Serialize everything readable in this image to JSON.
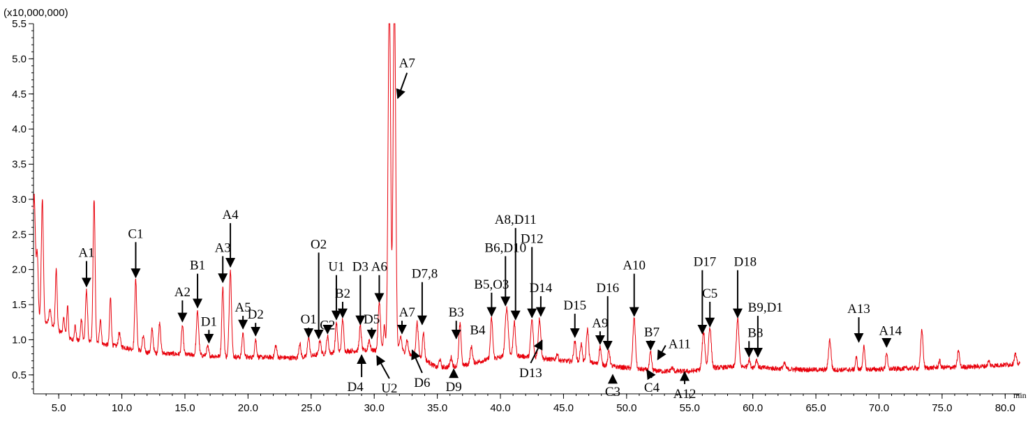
{
  "chart_data": {
    "type": "line",
    "title": "",
    "xlabel": "",
    "ylabel": "",
    "y_multiplier_label": "(x10,000,000)",
    "x_unit_label": "min",
    "xlim": [
      3.0,
      81.2
    ],
    "ylim": [
      0.23,
      5.5
    ],
    "x_ticks": [
      5,
      10,
      15,
      20,
      25,
      30,
      35,
      40,
      45,
      50,
      55,
      60,
      65,
      70,
      75,
      80
    ],
    "x_tick_labels": [
      "5.0",
      "10.0",
      "15.0",
      "20.0",
      "25.0",
      "30.0",
      "35.0",
      "40.0",
      "45.0",
      "50.0",
      "55.0",
      "60.0",
      "65.0",
      "70.0",
      "75.0",
      "80.0"
    ],
    "y_ticks": [
      0.5,
      1.0,
      1.5,
      2.0,
      2.5,
      3.0,
      3.5,
      4.0,
      4.5,
      5.0,
      5.5
    ],
    "y_tick_labels": [
      "0.5",
      "1.0",
      "1.5",
      "2.0",
      "2.5",
      "3.0",
      "3.5",
      "4.0",
      "4.5",
      "5.0",
      "5.5"
    ],
    "grid": false,
    "line_color": "#e8000b",
    "baseline": [
      [
        3.0,
        1.35
      ],
      [
        4.5,
        1.2
      ],
      [
        6.0,
        1.0
      ],
      [
        8.0,
        0.95
      ],
      [
        10.0,
        0.9
      ],
      [
        12.0,
        0.82
      ],
      [
        14.0,
        0.8
      ],
      [
        16.0,
        0.78
      ],
      [
        18.0,
        0.76
      ],
      [
        20.0,
        0.75
      ],
      [
        22.0,
        0.75
      ],
      [
        24.0,
        0.74
      ],
      [
        26.0,
        0.8
      ],
      [
        28.0,
        0.84
      ],
      [
        30.0,
        0.85
      ],
      [
        32.0,
        0.85
      ],
      [
        34.0,
        0.72
      ],
      [
        35.0,
        0.6
      ],
      [
        37.0,
        0.63
      ],
      [
        39.0,
        0.72
      ],
      [
        41.0,
        0.78
      ],
      [
        43.0,
        0.74
      ],
      [
        45.0,
        0.7
      ],
      [
        47.0,
        0.68
      ],
      [
        49.0,
        0.62
      ],
      [
        51.0,
        0.58
      ],
      [
        53.0,
        0.55
      ],
      [
        55.0,
        0.55
      ],
      [
        57.0,
        0.6
      ],
      [
        59.0,
        0.62
      ],
      [
        61.0,
        0.6
      ],
      [
        63.0,
        0.58
      ],
      [
        66.0,
        0.57
      ],
      [
        70.0,
        0.58
      ],
      [
        74.0,
        0.6
      ],
      [
        78.0,
        0.62
      ],
      [
        81.2,
        0.66
      ]
    ],
    "peaks": [
      [
        3.05,
        3.05,
        0.1
      ],
      [
        3.3,
        2.2,
        0.07
      ],
      [
        3.7,
        3.0,
        0.08
      ],
      [
        4.3,
        1.45,
        0.08
      ],
      [
        4.8,
        2.0,
        0.07
      ],
      [
        5.4,
        1.3,
        0.07
      ],
      [
        5.7,
        1.5,
        0.06
      ],
      [
        6.3,
        1.2,
        0.07
      ],
      [
        6.8,
        1.3,
        0.07
      ],
      [
        7.2,
        1.7,
        0.08
      ],
      [
        7.8,
        3.0,
        0.08
      ],
      [
        8.3,
        1.3,
        0.07
      ],
      [
        9.1,
        1.6,
        0.07
      ],
      [
        9.8,
        1.1,
        0.08
      ],
      [
        11.1,
        1.85,
        0.08
      ],
      [
        11.7,
        1.05,
        0.08
      ],
      [
        12.4,
        1.15,
        0.08
      ],
      [
        13.0,
        1.25,
        0.08
      ],
      [
        14.8,
        1.2,
        0.08
      ],
      [
        16.0,
        1.4,
        0.09
      ],
      [
        16.8,
        0.9,
        0.08
      ],
      [
        18.0,
        1.75,
        0.08
      ],
      [
        18.6,
        2.0,
        0.09
      ],
      [
        19.6,
        1.1,
        0.08
      ],
      [
        20.6,
        1.0,
        0.08
      ],
      [
        22.2,
        0.92,
        0.08
      ],
      [
        24.1,
        0.95,
        0.08
      ],
      [
        24.8,
        1.05,
        0.08
      ],
      [
        25.7,
        1.0,
        0.08
      ],
      [
        26.3,
        1.05,
        0.08
      ],
      [
        27.0,
        1.25,
        0.08
      ],
      [
        27.5,
        1.3,
        0.08
      ],
      [
        28.9,
        1.2,
        0.08
      ],
      [
        29.6,
        1.0,
        0.08
      ],
      [
        30.4,
        1.55,
        0.09
      ],
      [
        30.8,
        1.2,
        0.07
      ],
      [
        31.2,
        6.0,
        0.1
      ],
      [
        31.6,
        6.0,
        0.1
      ],
      [
        32.1,
        1.05,
        0.08
      ],
      [
        32.6,
        1.0,
        0.08
      ],
      [
        33.4,
        1.25,
        0.09
      ],
      [
        33.9,
        1.1,
        0.08
      ],
      [
        35.2,
        0.72,
        0.08
      ],
      [
        36.1,
        0.75,
        0.08
      ],
      [
        36.8,
        1.22,
        0.09
      ],
      [
        37.7,
        0.9,
        0.09
      ],
      [
        39.3,
        1.3,
        0.09
      ],
      [
        40.5,
        1.45,
        0.12
      ],
      [
        41.1,
        1.25,
        0.09
      ],
      [
        42.5,
        1.28,
        0.1
      ],
      [
        43.1,
        1.3,
        0.1
      ],
      [
        44.5,
        0.8,
        0.08
      ],
      [
        45.9,
        0.98,
        0.09
      ],
      [
        46.4,
        0.95,
        0.08
      ],
      [
        46.9,
        1.15,
        0.09
      ],
      [
        47.9,
        0.9,
        0.08
      ],
      [
        48.6,
        0.85,
        0.08
      ],
      [
        50.6,
        1.3,
        0.1
      ],
      [
        51.9,
        0.82,
        0.08
      ],
      [
        53.6,
        0.6,
        0.1
      ],
      [
        56.1,
        1.1,
        0.11
      ],
      [
        56.6,
        1.18,
        0.11
      ],
      [
        58.8,
        1.3,
        0.1
      ],
      [
        59.7,
        0.72,
        0.08
      ],
      [
        60.3,
        0.72,
        0.08
      ],
      [
        62.5,
        0.66,
        0.1
      ],
      [
        66.1,
        1.0,
        0.1
      ],
      [
        68.2,
        0.75,
        0.07
      ],
      [
        68.8,
        0.9,
        0.08
      ],
      [
        70.6,
        0.82,
        0.07
      ],
      [
        73.4,
        1.15,
        0.09
      ],
      [
        74.8,
        0.7,
        0.07
      ],
      [
        76.3,
        0.85,
        0.08
      ],
      [
        78.7,
        0.7,
        0.07
      ],
      [
        80.8,
        0.8,
        0.08
      ]
    ],
    "annotations": [
      {
        "label": "A1",
        "x": 7.2,
        "y": 1.72,
        "dir": "down",
        "len": 1,
        "lx": 7.2,
        "ly": 2.18
      },
      {
        "label": "C1",
        "x": 11.1,
        "y": 1.85,
        "dir": "down",
        "len": 2,
        "lx": 11.1,
        "ly": 2.45
      },
      {
        "label": "A2",
        "x": 14.8,
        "y": 1.22,
        "dir": "down",
        "len": 1,
        "lx": 14.8,
        "ly": 1.62
      },
      {
        "label": "B1",
        "x": 16.0,
        "y": 1.42,
        "dir": "down",
        "len": 1,
        "lx": 16.0,
        "ly": 2.0
      },
      {
        "label": "D1",
        "x": 16.9,
        "y": 0.92,
        "dir": "down",
        "len": 0,
        "lx": 16.9,
        "ly": 1.2
      },
      {
        "label": "A3",
        "x": 18.0,
        "y": 1.78,
        "dir": "down",
        "len": 1,
        "lx": 18.0,
        "ly": 2.25
      },
      {
        "label": "A4",
        "x": 18.6,
        "y": 2.0,
        "dir": "down",
        "len": 2,
        "lx": 18.6,
        "ly": 2.72
      },
      {
        "label": "A5",
        "x": 19.6,
        "y": 1.12,
        "dir": "down",
        "len": 0,
        "lx": 19.6,
        "ly": 1.4
      },
      {
        "label": "D2",
        "x": 20.6,
        "y": 1.02,
        "dir": "down",
        "len": 0,
        "lx": 20.6,
        "ly": 1.3
      },
      {
        "label": "O1",
        "x": 24.8,
        "y": 1.0,
        "dir": "down",
        "len": 1,
        "lx": 24.8,
        "ly": 1.23
      },
      {
        "label": "O2",
        "x": 25.6,
        "y": 0.98,
        "dir": "down",
        "len": 4,
        "lx": 25.6,
        "ly": 2.3
      },
      {
        "label": "C2",
        "x": 26.3,
        "y": 1.05,
        "dir": "down",
        "len": 1,
        "lx": 26.3,
        "ly": 1.15
      },
      {
        "label": "U1",
        "x": 27.0,
        "y": 1.25,
        "dir": "down",
        "len": 2,
        "lx": 27.0,
        "ly": 1.98
      },
      {
        "label": "B2",
        "x": 27.5,
        "y": 1.28,
        "dir": "down",
        "len": 1,
        "lx": 27.5,
        "ly": 1.6
      },
      {
        "label": "D3",
        "x": 28.9,
        "y": 1.18,
        "dir": "down",
        "len": 2,
        "lx": 28.9,
        "ly": 1.98
      },
      {
        "label": "D5",
        "x": 29.8,
        "y": 0.98,
        "dir": "down",
        "len": 0,
        "lx": 29.8,
        "ly": 1.23
      },
      {
        "label": "A6",
        "x": 30.4,
        "y": 1.5,
        "dir": "down",
        "len": 1,
        "lx": 30.4,
        "ly": 1.98
      },
      {
        "label": "A7",
        "x": 31.7,
        "y": 4.4,
        "dir": "upleft",
        "len": 0,
        "lx": 32.6,
        "ly": 4.88
      },
      {
        "label": "D7,8",
        "x": 33.8,
        "y": 1.18,
        "dir": "down",
        "len": 2,
        "lx": 34.0,
        "ly": 1.88
      },
      {
        "label": "A7",
        "x": 32.2,
        "y": 1.05,
        "dir": "down",
        "len": 0,
        "lx": 32.6,
        "ly": 1.33
      },
      {
        "label": "B3",
        "x": 36.5,
        "y": 0.98,
        "dir": "down",
        "len": 0,
        "lx": 36.5,
        "ly": 1.33
      },
      {
        "label": "B4",
        "x": 37.7,
        "y": 1.0,
        "dir": "none",
        "len": 0,
        "lx": 38.2,
        "ly": 1.08
      },
      {
        "label": "B5,O3",
        "x": 39.3,
        "y": 1.3,
        "dir": "down",
        "len": 1,
        "lx": 39.3,
        "ly": 1.73
      },
      {
        "label": "B6,D10",
        "x": 40.4,
        "y": 1.45,
        "dir": "down",
        "len": 2,
        "lx": 40.4,
        "ly": 2.25
      },
      {
        "label": "A8,D11",
        "x": 41.2,
        "y": 1.25,
        "dir": "down",
        "len": 4,
        "lx": 41.2,
        "ly": 2.65
      },
      {
        "label": "D12",
        "x": 42.5,
        "y": 1.28,
        "dir": "down",
        "len": 4,
        "lx": 42.5,
        "ly": 2.38
      },
      {
        "label": "D14",
        "x": 43.2,
        "y": 1.3,
        "dir": "down",
        "len": 0,
        "lx": 43.2,
        "ly": 1.68
      },
      {
        "label": "D15",
        "x": 45.9,
        "y": 1.0,
        "dir": "down",
        "len": 0,
        "lx": 45.9,
        "ly": 1.43
      },
      {
        "label": "A9",
        "x": 47.9,
        "y": 0.9,
        "dir": "down",
        "len": 0,
        "lx": 47.9,
        "ly": 1.18
      },
      {
        "label": "D16",
        "x": 48.5,
        "y": 0.82,
        "dir": "down",
        "len": 4,
        "lx": 48.5,
        "ly": 1.68
      },
      {
        "label": "A10",
        "x": 50.6,
        "y": 1.3,
        "dir": "down",
        "len": 2,
        "lx": 50.6,
        "ly": 2.0
      },
      {
        "label": "B7",
        "x": 51.9,
        "y": 0.82,
        "dir": "down",
        "len": 0,
        "lx": 52.0,
        "ly": 1.05
      },
      {
        "label": "A11",
        "x": 52.3,
        "y": 0.7,
        "dir": "upright",
        "len": 0,
        "lx": 54.2,
        "ly": 0.88
      },
      {
        "label": "D17",
        "x": 56.0,
        "y": 1.05,
        "dir": "down",
        "len": 3,
        "lx": 56.2,
        "ly": 2.05
      },
      {
        "label": "C5",
        "x": 56.6,
        "y": 1.15,
        "dir": "down",
        "len": 0,
        "lx": 56.6,
        "ly": 1.6
      },
      {
        "label": "D18",
        "x": 58.8,
        "y": 1.28,
        "dir": "down",
        "len": 3,
        "lx": 59.4,
        "ly": 2.05
      },
      {
        "label": "B9,D1",
        "x": 60.4,
        "y": 0.72,
        "dir": "down",
        "len": 3,
        "lx": 61.0,
        "ly": 1.4
      },
      {
        "label": "B8",
        "x": 59.7,
        "y": 0.72,
        "dir": "down",
        "len": 0,
        "lx": 60.2,
        "ly": 1.04
      },
      {
        "label": "A13",
        "x": 68.4,
        "y": 0.93,
        "dir": "down",
        "len": 0,
        "lx": 68.4,
        "ly": 1.38
      },
      {
        "label": "A14",
        "x": 70.6,
        "y": 0.86,
        "dir": "down",
        "len": 0,
        "lx": 70.9,
        "ly": 1.07
      },
      {
        "label": "D4",
        "x": 29.0,
        "y": 0.82,
        "dir": "up",
        "len": 1,
        "lx": 28.5,
        "ly": 0.27
      },
      {
        "label": "U2",
        "x": 30.1,
        "y": 0.8,
        "dir": "upleft2",
        "len": 0,
        "lx": 31.2,
        "ly": 0.25
      },
      {
        "label": "D6",
        "x": 32.9,
        "y": 0.88,
        "dir": "upleft2",
        "len": 0,
        "lx": 33.8,
        "ly": 0.33
      },
      {
        "label": "D9",
        "x": 36.3,
        "y": 0.62,
        "dir": "up",
        "len": 0,
        "lx": 36.3,
        "ly": 0.27
      },
      {
        "label": "D13",
        "x": 43.3,
        "y": 1.02,
        "dir": "downleft",
        "len": 0,
        "lx": 42.4,
        "ly": 0.47
      },
      {
        "label": "C3",
        "x": 48.9,
        "y": 0.54,
        "dir": "up",
        "len": 0,
        "lx": 48.9,
        "ly": 0.2
      },
      {
        "label": "C4",
        "x": 51.5,
        "y": 0.6,
        "dir": "upleft2",
        "len": 0,
        "lx": 52.0,
        "ly": 0.26
      },
      {
        "label": "A12",
        "x": 54.6,
        "y": 0.58,
        "dir": "up",
        "len": 0,
        "lx": 54.6,
        "ly": 0.17
      }
    ]
  }
}
